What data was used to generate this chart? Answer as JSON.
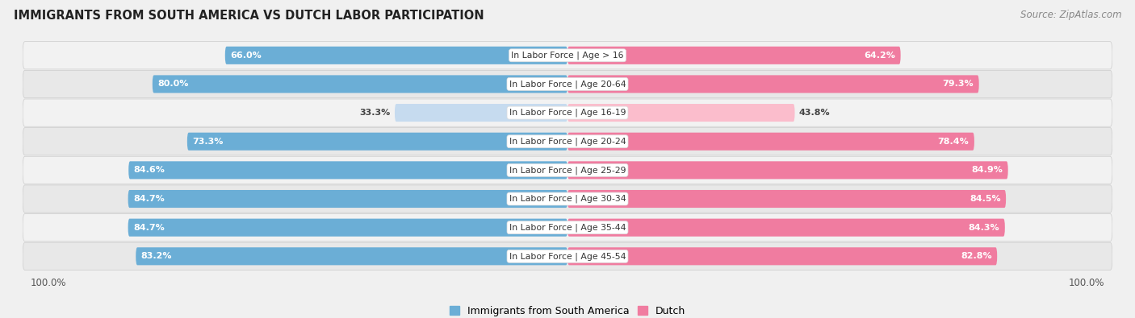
{
  "title": "IMMIGRANTS FROM SOUTH AMERICA VS DUTCH LABOR PARTICIPATION",
  "source": "Source: ZipAtlas.com",
  "categories": [
    "In Labor Force | Age > 16",
    "In Labor Force | Age 20-64",
    "In Labor Force | Age 16-19",
    "In Labor Force | Age 20-24",
    "In Labor Force | Age 25-29",
    "In Labor Force | Age 30-34",
    "In Labor Force | Age 35-44",
    "In Labor Force | Age 45-54"
  ],
  "south_america_values": [
    66.0,
    80.0,
    33.3,
    73.3,
    84.6,
    84.7,
    84.7,
    83.2
  ],
  "dutch_values": [
    64.2,
    79.3,
    43.8,
    78.4,
    84.9,
    84.5,
    84.3,
    82.8
  ],
  "south_america_color": "#6BAED6",
  "south_america_light_color": "#C6DBEF",
  "dutch_color": "#F07CA0",
  "dutch_light_color": "#FBBDCC",
  "row_bg_light": "#F2F2F2",
  "row_bg_dark": "#E8E8E8",
  "fig_bg": "#F0F0F0",
  "max_value": 100.0,
  "legend_sa": "Immigrants from South America",
  "legend_dutch": "Dutch",
  "figsize": [
    14.06,
    3.95
  ],
  "dpi": 100
}
